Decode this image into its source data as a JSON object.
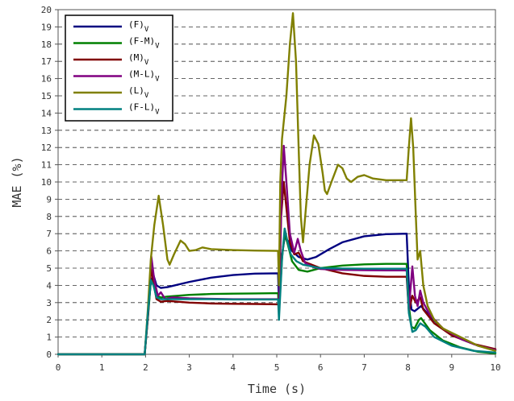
{
  "chart_data": {
    "type": "line",
    "title": "",
    "xlabel": "Time (s)",
    "ylabel": "MAE (%)",
    "xlim": [
      0,
      10
    ],
    "ylim": [
      0,
      20
    ],
    "xticks": [
      "0",
      "1",
      "2",
      "3",
      "4",
      "5",
      "6",
      "7",
      "8",
      "9",
      "10"
    ],
    "yticks": [
      "0",
      "1",
      "2",
      "3",
      "4",
      "5",
      "6",
      "7",
      "8",
      "9",
      "10",
      "11",
      "12",
      "13",
      "14",
      "15",
      "16",
      "17",
      "18",
      "19",
      "20"
    ],
    "grid": "horizontal dashed",
    "legend_position": "top-left",
    "series": [
      {
        "name": "(F)",
        "subscript": "V",
        "color": "#000080",
        "points": [
          [
            0,
            0
          ],
          [
            1.98,
            0
          ],
          [
            2.06,
            2.5
          ],
          [
            2.12,
            4.2
          ],
          [
            2.18,
            4.6
          ],
          [
            2.25,
            4.0
          ],
          [
            2.35,
            3.85
          ],
          [
            2.5,
            3.9
          ],
          [
            3,
            4.2
          ],
          [
            3.5,
            4.45
          ],
          [
            4,
            4.6
          ],
          [
            4.5,
            4.68
          ],
          [
            5.03,
            4.7
          ],
          [
            5.05,
            3.0
          ],
          [
            5.1,
            5.4
          ],
          [
            5.18,
            6.8
          ],
          [
            5.25,
            6.6
          ],
          [
            5.35,
            6.0
          ],
          [
            5.5,
            5.65
          ],
          [
            5.7,
            5.5
          ],
          [
            5.9,
            5.65
          ],
          [
            6.2,
            6.1
          ],
          [
            6.5,
            6.5
          ],
          [
            7,
            6.85
          ],
          [
            7.5,
            6.97
          ],
          [
            7.97,
            7.0
          ],
          [
            8.02,
            4.0
          ],
          [
            8.08,
            2.6
          ],
          [
            8.15,
            2.5
          ],
          [
            8.3,
            2.8
          ],
          [
            8.5,
            2.2
          ],
          [
            8.8,
            1.5
          ],
          [
            9.2,
            0.9
          ],
          [
            9.6,
            0.5
          ],
          [
            10,
            0.25
          ]
        ]
      },
      {
        "name": "(F-M)",
        "subscript": "V",
        "color": "#008000",
        "points": [
          [
            0,
            0
          ],
          [
            1.98,
            0
          ],
          [
            2.06,
            2.3
          ],
          [
            2.12,
            4.3
          ],
          [
            2.18,
            4.1
          ],
          [
            2.25,
            3.4
          ],
          [
            2.35,
            3.3
          ],
          [
            2.5,
            3.35
          ],
          [
            3,
            3.45
          ],
          [
            3.5,
            3.5
          ],
          [
            4,
            3.52
          ],
          [
            4.5,
            3.53
          ],
          [
            5.03,
            3.55
          ],
          [
            5.05,
            2.4
          ],
          [
            5.12,
            5.6
          ],
          [
            5.18,
            7.0
          ],
          [
            5.25,
            6.4
          ],
          [
            5.35,
            5.4
          ],
          [
            5.5,
            4.9
          ],
          [
            5.7,
            4.8
          ],
          [
            6,
            5.0
          ],
          [
            6.5,
            5.15
          ],
          [
            7,
            5.22
          ],
          [
            7.5,
            5.25
          ],
          [
            7.97,
            5.25
          ],
          [
            8.02,
            2.8
          ],
          [
            8.08,
            1.6
          ],
          [
            8.15,
            1.5
          ],
          [
            8.25,
            2.0
          ],
          [
            8.3,
            2.1
          ],
          [
            8.5,
            1.4
          ],
          [
            8.8,
            0.8
          ],
          [
            9.2,
            0.4
          ],
          [
            9.6,
            0.15
          ],
          [
            10,
            0.05
          ]
        ]
      },
      {
        "name": "(M)",
        "subscript": "V",
        "color": "#800000",
        "points": [
          [
            0,
            0
          ],
          [
            1.98,
            0
          ],
          [
            2.06,
            2.4
          ],
          [
            2.12,
            5.0
          ],
          [
            2.18,
            4.2
          ],
          [
            2.25,
            3.2
          ],
          [
            2.35,
            3.05
          ],
          [
            2.5,
            3.1
          ],
          [
            3,
            3.0
          ],
          [
            3.5,
            2.95
          ],
          [
            4,
            2.93
          ],
          [
            4.5,
            2.92
          ],
          [
            5.03,
            2.9
          ],
          [
            5.05,
            2.8
          ],
          [
            5.1,
            8.0
          ],
          [
            5.16,
            10.0
          ],
          [
            5.22,
            8.5
          ],
          [
            5.3,
            6.5
          ],
          [
            5.4,
            5.8
          ],
          [
            5.5,
            5.9
          ],
          [
            5.6,
            5.4
          ],
          [
            5.8,
            5.2
          ],
          [
            6,
            5.0
          ],
          [
            6.5,
            4.7
          ],
          [
            7,
            4.55
          ],
          [
            7.5,
            4.5
          ],
          [
            7.97,
            4.5
          ],
          [
            8.02,
            2.5
          ],
          [
            8.1,
            3.4
          ],
          [
            8.18,
            3.0
          ],
          [
            8.28,
            3.3
          ],
          [
            8.35,
            2.6
          ],
          [
            8.6,
            1.8
          ],
          [
            9,
            1.1
          ],
          [
            9.5,
            0.6
          ],
          [
            10,
            0.3
          ]
        ]
      },
      {
        "name": "(M-L)",
        "subscript": "V",
        "color": "#800080",
        "points": [
          [
            0,
            0
          ],
          [
            1.98,
            0
          ],
          [
            2.06,
            2.5
          ],
          [
            2.13,
            5.7
          ],
          [
            2.2,
            4.3
          ],
          [
            2.28,
            3.4
          ],
          [
            2.35,
            3.6
          ],
          [
            2.45,
            3.2
          ],
          [
            2.6,
            3.3
          ],
          [
            3,
            3.25
          ],
          [
            3.5,
            3.22
          ],
          [
            4,
            3.2
          ],
          [
            4.5,
            3.2
          ],
          [
            5.03,
            3.2
          ],
          [
            5.05,
            2.7
          ],
          [
            5.1,
            8.5
          ],
          [
            5.16,
            12.1
          ],
          [
            5.22,
            10.0
          ],
          [
            5.3,
            7.0
          ],
          [
            5.4,
            5.9
          ],
          [
            5.48,
            6.7
          ],
          [
            5.55,
            6.0
          ],
          [
            5.65,
            5.3
          ],
          [
            5.8,
            5.1
          ],
          [
            6,
            4.95
          ],
          [
            6.5,
            4.9
          ],
          [
            7,
            4.88
          ],
          [
            7.5,
            4.87
          ],
          [
            7.97,
            4.87
          ],
          [
            8.02,
            2.6
          ],
          [
            8.1,
            5.1
          ],
          [
            8.16,
            3.4
          ],
          [
            8.22,
            2.8
          ],
          [
            8.28,
            3.7
          ],
          [
            8.35,
            3.0
          ],
          [
            8.5,
            2.3
          ],
          [
            8.8,
            1.5
          ],
          [
            9.2,
            0.9
          ],
          [
            9.6,
            0.5
          ],
          [
            10,
            0.25
          ]
        ]
      },
      {
        "name": "(L)",
        "subscript": "V",
        "color": "#808000",
        "points": [
          [
            0,
            0
          ],
          [
            1.98,
            0
          ],
          [
            2.05,
            2.5
          ],
          [
            2.12,
            5.5
          ],
          [
            2.2,
            7.5
          ],
          [
            2.3,
            9.2
          ],
          [
            2.4,
            7.5
          ],
          [
            2.5,
            5.5
          ],
          [
            2.55,
            5.2
          ],
          [
            2.65,
            5.8
          ],
          [
            2.8,
            6.6
          ],
          [
            2.9,
            6.4
          ],
          [
            3,
            6.0
          ],
          [
            3.15,
            6.05
          ],
          [
            3.3,
            6.2
          ],
          [
            3.5,
            6.1
          ],
          [
            4,
            6.05
          ],
          [
            4.5,
            6.02
          ],
          [
            5.03,
            6.0
          ],
          [
            5.05,
            4.0
          ],
          [
            5.08,
            10.0
          ],
          [
            5.12,
            12.5
          ],
          [
            5.22,
            15.0
          ],
          [
            5.3,
            18.0
          ],
          [
            5.37,
            19.8
          ],
          [
            5.44,
            17.0
          ],
          [
            5.5,
            12.0
          ],
          [
            5.55,
            8.0
          ],
          [
            5.6,
            6.5
          ],
          [
            5.65,
            8.0
          ],
          [
            5.75,
            11.0
          ],
          [
            5.85,
            12.7
          ],
          [
            5.95,
            12.2
          ],
          [
            6.05,
            10.5
          ],
          [
            6.1,
            9.5
          ],
          [
            6.15,
            9.3
          ],
          [
            6.25,
            10.0
          ],
          [
            6.4,
            11.0
          ],
          [
            6.5,
            10.8
          ],
          [
            6.6,
            10.2
          ],
          [
            6.7,
            10.0
          ],
          [
            6.85,
            10.3
          ],
          [
            7,
            10.4
          ],
          [
            7.2,
            10.2
          ],
          [
            7.5,
            10.1
          ],
          [
            7.97,
            10.1
          ],
          [
            8.02,
            12.0
          ],
          [
            8.07,
            13.7
          ],
          [
            8.12,
            12.0
          ],
          [
            8.18,
            8.0
          ],
          [
            8.22,
            5.5
          ],
          [
            8.28,
            6.0
          ],
          [
            8.35,
            4.0
          ],
          [
            8.45,
            2.8
          ],
          [
            8.6,
            2.0
          ],
          [
            8.8,
            1.5
          ],
          [
            9.2,
            1.0
          ],
          [
            9.6,
            0.5
          ],
          [
            10,
            0.2
          ]
        ]
      },
      {
        "name": "(F-L)",
        "subscript": "V",
        "color": "#008080",
        "points": [
          [
            0,
            0
          ],
          [
            1.98,
            0
          ],
          [
            2.05,
            2.3
          ],
          [
            2.12,
            4.3
          ],
          [
            2.18,
            4.0
          ],
          [
            2.25,
            3.3
          ],
          [
            2.35,
            3.2
          ],
          [
            2.5,
            3.2
          ],
          [
            3,
            3.2
          ],
          [
            3.5,
            3.2
          ],
          [
            4,
            3.18
          ],
          [
            4.5,
            3.18
          ],
          [
            5.03,
            3.18
          ],
          [
            5.05,
            2.0
          ],
          [
            5.12,
            5.5
          ],
          [
            5.18,
            7.3
          ],
          [
            5.24,
            6.6
          ],
          [
            5.32,
            5.8
          ],
          [
            5.45,
            5.4
          ],
          [
            5.6,
            5.2
          ],
          [
            6,
            5.0
          ],
          [
            6.5,
            4.98
          ],
          [
            7,
            4.97
          ],
          [
            7.5,
            4.97
          ],
          [
            7.97,
            4.97
          ],
          [
            8.02,
            2.4
          ],
          [
            8.1,
            1.3
          ],
          [
            8.18,
            1.4
          ],
          [
            8.28,
            1.8
          ],
          [
            8.4,
            1.6
          ],
          [
            8.6,
            1.0
          ],
          [
            9,
            0.5
          ],
          [
            9.5,
            0.2
          ],
          [
            10,
            0.1
          ]
        ]
      }
    ]
  }
}
